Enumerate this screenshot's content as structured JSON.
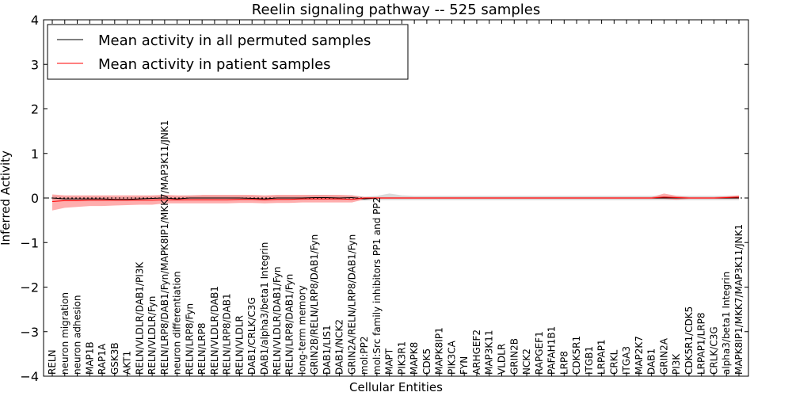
{
  "chart_data": {
    "type": "line",
    "title": "Reelin signaling pathway -- 525 samples",
    "xlabel": "Cellular Entities",
    "ylabel": "Inferred Activity",
    "ylim": [
      -4,
      4
    ],
    "yticks": [
      -4,
      -3,
      -2,
      -1,
      0,
      1,
      2,
      3,
      4
    ],
    "ytick_labels": [
      "−4",
      "−3",
      "−2",
      "−1",
      "0",
      "1",
      "2",
      "3",
      "4"
    ],
    "legend_location": "upper-left",
    "categories": [
      "RELN",
      "neuron migration",
      "neuron adhesion",
      "MAP1B",
      "RAP1A",
      "GSK3B",
      "AKT1",
      "RELN/VLDLR/DAB1/PI3K",
      "RELN/VLDLR/Fyn",
      "RELN/LRP8/DAB1/Fyn/MAPK8IP1/MKK7/MAP3K11/JNK1",
      "neuron differentiation",
      "RELN/LRP8/Fyn",
      "RELN/LRP8",
      "RELN/VLDLR/DAB1",
      "RELN/LRP8/DAB1",
      "RELN/VLDLR",
      "DAB1/CRLK/C3G",
      "DAB1/alpha3/beta1 Integrin",
      "RELN/VLDLR/DAB1/Fyn",
      "RELN/LRP8/DAB1/Fyn",
      "long-term memory",
      "GRIN2B/RELN/LRP8/DAB1/Fyn",
      "DAB1/LIS1",
      "DAB1/NCK2",
      "GRIN2A/RELN/LRP8/DAB1/Fyn",
      "mol:PP2",
      "mol:Src family inhibitors PP1 and PP2",
      "MAPT",
      "PIK3R1",
      "MAPK8",
      "CDK5",
      "MAPK8IP1",
      "PIK3CA",
      "FYN",
      "ARHGEF2",
      "MAP3K11",
      "VLDLR",
      "GRIN2B",
      "NCK2",
      "RAPGEF1",
      "PAFAH1B1",
      "LRP8",
      "CDK5R1",
      "ITGB1",
      "LRPAP1",
      "CRKL",
      "ITGA3",
      "MAP2K7",
      "DAB1",
      "GRIN2A",
      "PI3K",
      "CDK5R1/CDK5",
      "LRPAP1/LRP8",
      "CRLK/C3G",
      "alpha3/beta1 Integrin",
      "MAPK8IP1/MKK7/MAP3K11/JNK1"
    ],
    "series": [
      {
        "name": "Mean activity in all permuted samples",
        "color": "#000000",
        "values": [
          0.0,
          -0.02,
          -0.02,
          -0.02,
          -0.02,
          -0.03,
          -0.03,
          -0.02,
          -0.01,
          0.0,
          -0.02,
          0.0,
          0.0,
          0.0,
          0.0,
          0.0,
          -0.01,
          -0.02,
          0.0,
          0.0,
          0.0,
          0.01,
          0.01,
          0.0,
          0.01,
          -0.02,
          0.0,
          0.0,
          0.0,
          0.0,
          0.0,
          0.0,
          0.0,
          0.0,
          0.0,
          0.0,
          0.0,
          0.0,
          0.0,
          0.0,
          0.0,
          0.0,
          0.0,
          0.0,
          0.0,
          0.0,
          0.0,
          0.0,
          0.0,
          0.0,
          0.0,
          0.0,
          0.0,
          0.0,
          0.0,
          0.0
        ],
        "band_lower": [
          -0.05,
          -0.07,
          -0.07,
          -0.07,
          -0.07,
          -0.07,
          -0.07,
          -0.06,
          -0.05,
          -0.05,
          -0.06,
          -0.05,
          -0.05,
          -0.05,
          -0.05,
          -0.05,
          -0.05,
          -0.06,
          -0.05,
          -0.05,
          -0.05,
          -0.04,
          -0.04,
          -0.05,
          -0.04,
          -0.06,
          -0.05,
          -0.05,
          -0.05,
          -0.05,
          -0.05,
          -0.05,
          -0.05,
          -0.05,
          -0.05,
          -0.05,
          -0.05,
          -0.05,
          -0.05,
          -0.05,
          -0.05,
          -0.05,
          -0.05,
          -0.05,
          -0.05,
          -0.05,
          -0.05,
          -0.05,
          -0.05,
          -0.05,
          -0.05,
          -0.05,
          -0.05,
          -0.05,
          -0.05,
          -0.05
        ],
        "band_upper": [
          0.05,
          0.03,
          0.03,
          0.03,
          0.03,
          0.02,
          0.02,
          0.03,
          0.04,
          0.05,
          0.03,
          0.05,
          0.05,
          0.05,
          0.05,
          0.05,
          0.04,
          0.03,
          0.05,
          0.05,
          0.05,
          0.06,
          0.06,
          0.05,
          0.06,
          0.03,
          0.05,
          0.1,
          0.06,
          0.05,
          0.05,
          0.05,
          0.05,
          0.05,
          0.05,
          0.05,
          0.05,
          0.05,
          0.05,
          0.05,
          0.05,
          0.05,
          0.05,
          0.05,
          0.05,
          0.05,
          0.05,
          0.05,
          0.05,
          0.05,
          0.05,
          0.05,
          0.05,
          0.05,
          0.05,
          0.05
        ]
      },
      {
        "name": "Mean activity in patient samples",
        "color": "#ff0000",
        "values": [
          -0.08,
          -0.06,
          -0.06,
          -0.05,
          -0.05,
          -0.05,
          -0.05,
          -0.05,
          -0.05,
          -0.04,
          -0.04,
          -0.04,
          -0.04,
          -0.04,
          -0.04,
          -0.03,
          -0.03,
          -0.04,
          -0.03,
          -0.03,
          -0.02,
          -0.02,
          -0.02,
          -0.02,
          -0.03,
          0.0,
          0.0,
          0.0,
          0.0,
          0.0,
          0.0,
          0.0,
          0.0,
          0.0,
          0.0,
          0.0,
          0.0,
          0.0,
          0.0,
          0.0,
          0.0,
          0.0,
          0.0,
          0.0,
          0.0,
          0.0,
          0.0,
          0.0,
          0.0,
          0.02,
          0.01,
          0.0,
          0.0,
          0.0,
          0.01,
          0.02
        ],
        "band_lower": [
          -0.28,
          -0.22,
          -0.2,
          -0.18,
          -0.18,
          -0.17,
          -0.16,
          -0.15,
          -0.15,
          -0.12,
          -0.12,
          -0.12,
          -0.12,
          -0.12,
          -0.12,
          -0.11,
          -0.11,
          -0.12,
          -0.11,
          -0.11,
          -0.1,
          -0.1,
          -0.1,
          -0.1,
          -0.1,
          -0.03,
          -0.02,
          -0.02,
          -0.02,
          -0.02,
          -0.02,
          -0.02,
          -0.02,
          -0.02,
          -0.02,
          -0.02,
          -0.02,
          -0.02,
          -0.02,
          -0.02,
          -0.02,
          -0.02,
          -0.02,
          -0.02,
          -0.02,
          -0.02,
          -0.02,
          -0.02,
          -0.02,
          -0.02,
          -0.04,
          -0.02,
          -0.02,
          -0.02,
          -0.02,
          -0.02
        ],
        "band_upper": [
          0.08,
          0.06,
          0.06,
          0.06,
          0.06,
          0.06,
          0.06,
          0.06,
          0.06,
          0.07,
          0.06,
          0.06,
          0.07,
          0.07,
          0.07,
          0.07,
          0.07,
          0.06,
          0.07,
          0.07,
          0.07,
          0.07,
          0.07,
          0.07,
          0.06,
          0.02,
          0.02,
          0.02,
          0.02,
          0.02,
          0.02,
          0.02,
          0.02,
          0.02,
          0.02,
          0.02,
          0.02,
          0.02,
          0.02,
          0.02,
          0.02,
          0.02,
          0.02,
          0.02,
          0.02,
          0.02,
          0.02,
          0.02,
          0.02,
          0.1,
          0.05,
          0.02,
          0.02,
          0.02,
          0.04,
          0.06
        ]
      }
    ]
  },
  "colors": {
    "permuted_band": "#d3d3d3",
    "patient_band": "#ff6a6a",
    "reference_line": "#000000"
  }
}
